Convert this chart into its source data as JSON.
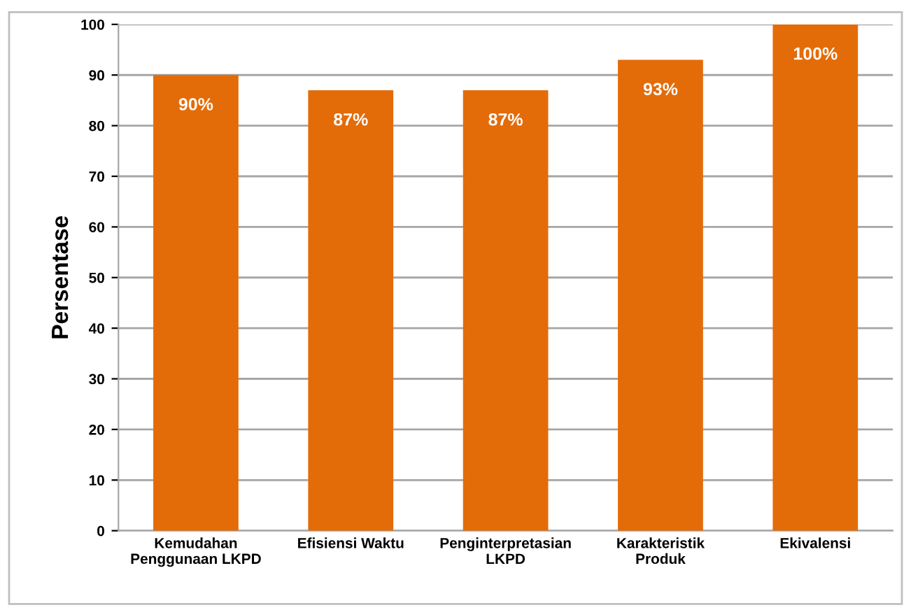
{
  "chart_data": {
    "type": "bar",
    "ylabel": "Persentase",
    "categories": [
      "Kemudahan\nPenggunaan LKPD",
      "Efisiensi Waktu",
      "Penginterpretasian\nLKPD",
      "Karakteristik\nProduk",
      "Ekivalensi"
    ],
    "values": [
      90,
      87,
      87,
      93,
      100
    ],
    "value_labels": [
      "90%",
      "87%",
      "87%",
      "93%",
      "100%"
    ],
    "color": "#e36c09",
    "ylim": [
      0,
      100
    ],
    "yticks": [
      0,
      10,
      20,
      30,
      40,
      50,
      60,
      70,
      80,
      90,
      100
    ],
    "grid": "y"
  }
}
